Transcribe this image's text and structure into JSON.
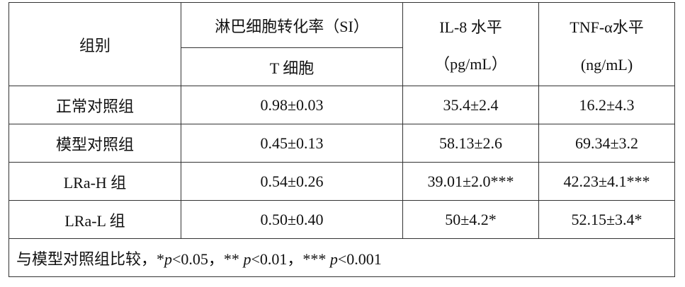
{
  "header": {
    "group": "组别",
    "lymph": "淋巴细胞转化率（SI）",
    "lymph_sub": "T 细胞",
    "il8": [
      "IL-8 水平",
      "（pg/mL）"
    ],
    "tnf": [
      "TNF-α水平",
      "(ng/mL)"
    ]
  },
  "table": {
    "rows": [
      [
        "正常对照组",
        "0.98±0.03",
        "35.4±2.4",
        "16.2±4.3"
      ],
      [
        "模型对照组",
        "0.45±0.13",
        "58.13±2.6",
        "69.34±3.2"
      ],
      [
        "LRa-H 组",
        "0.54±0.26",
        "39.01±2.0***",
        "42.23±4.1***"
      ],
      [
        "LRa-L 组",
        "0.50±0.40",
        "50±4.2*",
        "52.15±3.4*"
      ]
    ]
  },
  "footnote": [
    "与模型对照组比较，*",
    "p",
    "<0.05，** ",
    "p",
    "<0.01，*** ",
    "p",
    "<0.001"
  ]
}
